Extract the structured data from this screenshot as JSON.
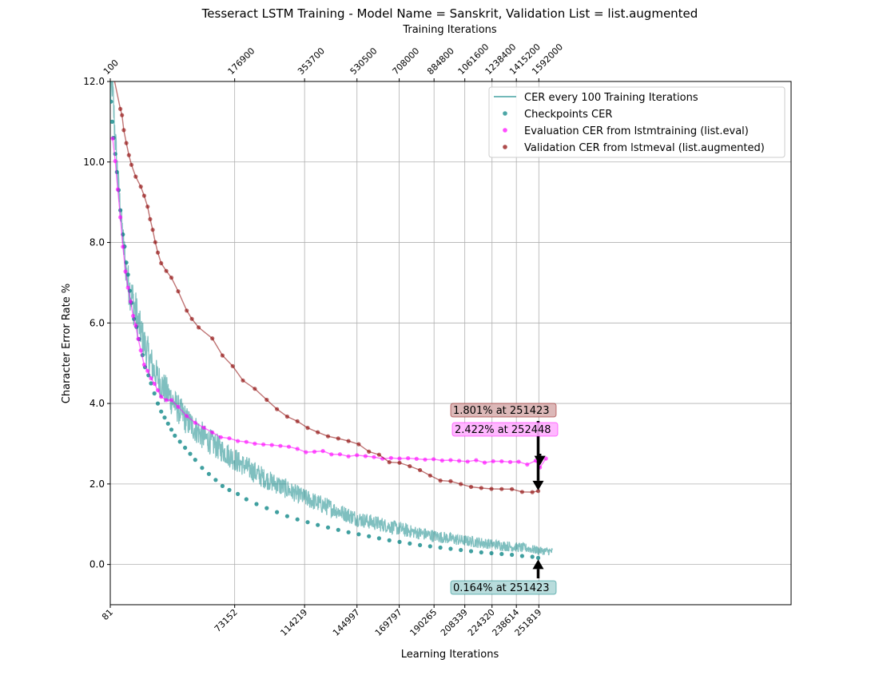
{
  "chart_data": {
    "type": "line",
    "title": "Tesseract LSTM Training - Model Name = Sanskrit, Validation List = list.augmented",
    "xlabel": "Learning Iterations",
    "x2label": "Training Iterations",
    "ylabel": "Character Error Rate %",
    "xlim": [
      81,
      400000
    ],
    "ylim": [
      -1.0,
      12.0
    ],
    "yticks": [
      0.0,
      2.0,
      4.0,
      6.0,
      8.0,
      10.0,
      12.0
    ],
    "ytick_labels": [
      "0.0",
      "2.0",
      "4.0",
      "6.0",
      "8.0",
      "10.0",
      "12.0"
    ],
    "xticks_bottom": [
      81,
      73152,
      114219,
      144997,
      169797,
      190265,
      208339,
      224320,
      238614,
      251819
    ],
    "xticks_top": [
      {
        "label": "100",
        "x": 81
      },
      {
        "label": "176900",
        "x": 73152
      },
      {
        "label": "353700",
        "x": 114219
      },
      {
        "label": "530500",
        "x": 144997
      },
      {
        "label": "708000",
        "x": 169797
      },
      {
        "label": "884800",
        "x": 190265
      },
      {
        "label": "1061600",
        "x": 208339
      },
      {
        "label": "1238400",
        "x": 224320
      },
      {
        "label": "1415200",
        "x": 238614
      },
      {
        "label": "1592000",
        "x": 251819
      }
    ],
    "grid": true,
    "legend": {
      "position": "top-right",
      "entries": [
        {
          "label": "CER every 100 Training Iterations",
          "kind": "line",
          "color": "#008080"
        },
        {
          "label": "Checkpoints CER",
          "kind": "dot",
          "color": "#008080"
        },
        {
          "label": "Evaluation CER from lstmtraining (list.eval)",
          "kind": "dot",
          "color": "#ff00ff"
        },
        {
          "label": "Validation CER from lstmeval (list.augmented)",
          "kind": "dot",
          "color": "#8b0000"
        }
      ]
    },
    "series": [
      {
        "name": "CER every 100 Training Iterations",
        "kind": "line",
        "color": "#008080",
        "points": [
          [
            81,
            11.5
          ],
          [
            1000,
            12.0
          ],
          [
            3000,
            10.5
          ],
          [
            5000,
            9.2
          ],
          [
            8000,
            7.8
          ],
          [
            10000,
            7.0
          ],
          [
            13000,
            6.5
          ],
          [
            16000,
            6.0
          ],
          [
            20000,
            5.4
          ],
          [
            25000,
            4.8
          ],
          [
            30000,
            4.4
          ],
          [
            38000,
            3.9
          ],
          [
            45000,
            3.5
          ],
          [
            55000,
            3.1
          ],
          [
            65000,
            2.8
          ],
          [
            75000,
            2.5
          ],
          [
            90000,
            2.1
          ],
          [
            105000,
            1.8
          ],
          [
            115000,
            1.6
          ],
          [
            130000,
            1.35
          ],
          [
            145000,
            1.1
          ],
          [
            160000,
            0.95
          ],
          [
            175000,
            0.8
          ],
          [
            190000,
            0.68
          ],
          [
            205000,
            0.58
          ],
          [
            220000,
            0.5
          ],
          [
            235000,
            0.42
          ],
          [
            245000,
            0.38
          ],
          [
            252448,
            0.32
          ],
          [
            260000,
            0.3
          ]
        ],
        "noise": [
          0.6,
          1.0,
          0.9,
          0.8,
          0.9,
          1.0,
          1.1,
          0.9,
          0.9,
          0.8,
          0.8,
          0.75,
          0.7,
          0.65,
          0.6,
          0.55,
          0.5,
          0.45,
          0.45,
          0.4,
          0.38,
          0.35,
          0.32,
          0.3,
          0.28,
          0.26,
          0.24,
          0.22,
          0.2,
          0.18
        ]
      },
      {
        "name": "Checkpoints CER",
        "kind": "dot",
        "color": "#008080",
        "points": [
          [
            500,
            11.5
          ],
          [
            1200,
            11.0
          ],
          [
            2000,
            10.6
          ],
          [
            3000,
            10.2
          ],
          [
            4000,
            9.75
          ],
          [
            5000,
            9.3
          ],
          [
            6000,
            8.8
          ],
          [
            7500,
            8.2
          ],
          [
            8500,
            7.9
          ],
          [
            9500,
            7.5
          ],
          [
            10500,
            7.2
          ],
          [
            11500,
            6.8
          ],
          [
            12500,
            6.5
          ],
          [
            14000,
            6.1
          ],
          [
            15500,
            5.9
          ],
          [
            17000,
            5.6
          ],
          [
            19000,
            5.2
          ],
          [
            20500,
            4.9
          ],
          [
            22500,
            4.7
          ],
          [
            24000,
            4.5
          ],
          [
            26000,
            4.25
          ],
          [
            28000,
            4.0
          ],
          [
            30000,
            3.8
          ],
          [
            32000,
            3.65
          ],
          [
            34000,
            3.5
          ],
          [
            36000,
            3.35
          ],
          [
            38000,
            3.2
          ],
          [
            41000,
            3.05
          ],
          [
            44000,
            2.9
          ],
          [
            47000,
            2.75
          ],
          [
            50000,
            2.6
          ],
          [
            54000,
            2.4
          ],
          [
            58000,
            2.25
          ],
          [
            62000,
            2.1
          ],
          [
            66000,
            1.95
          ],
          [
            70000,
            1.85
          ],
          [
            75000,
            1.75
          ],
          [
            80000,
            1.62
          ],
          [
            86000,
            1.5
          ],
          [
            92000,
            1.4
          ],
          [
            98000,
            1.3
          ],
          [
            104000,
            1.2
          ],
          [
            110000,
            1.12
          ],
          [
            116000,
            1.05
          ],
          [
            122000,
            0.98
          ],
          [
            128000,
            0.92
          ],
          [
            134000,
            0.86
          ],
          [
            140000,
            0.8
          ],
          [
            146000,
            0.75
          ],
          [
            152000,
            0.7
          ],
          [
            158000,
            0.65
          ],
          [
            164000,
            0.6
          ],
          [
            170000,
            0.56
          ],
          [
            176000,
            0.52
          ],
          [
            182000,
            0.48
          ],
          [
            188000,
            0.45
          ],
          [
            194000,
            0.42
          ],
          [
            200000,
            0.39
          ],
          [
            206000,
            0.36
          ],
          [
            212000,
            0.33
          ],
          [
            218000,
            0.3
          ],
          [
            224000,
            0.28
          ],
          [
            230000,
            0.26
          ],
          [
            236000,
            0.24
          ],
          [
            242000,
            0.21
          ],
          [
            248000,
            0.19
          ],
          [
            251423,
            0.164
          ]
        ]
      },
      {
        "name": "Evaluation CER from lstmtraining (list.eval)",
        "kind": "dot-line",
        "color": "#ff00ff",
        "points": [
          [
            1500,
            10.6
          ],
          [
            3000,
            10.0
          ],
          [
            4500,
            9.3
          ],
          [
            6000,
            8.6
          ],
          [
            7500,
            7.9
          ],
          [
            9000,
            7.3
          ],
          [
            10500,
            6.9
          ],
          [
            12000,
            6.5
          ],
          [
            13500,
            6.2
          ],
          [
            15000,
            5.9
          ],
          [
            16500,
            5.6
          ],
          [
            18000,
            5.3
          ],
          [
            20000,
            5.0
          ],
          [
            22000,
            4.8
          ],
          [
            24000,
            4.6
          ],
          [
            26000,
            4.5
          ],
          [
            28000,
            4.3
          ],
          [
            30000,
            4.2
          ],
          [
            33000,
            4.1
          ],
          [
            36000,
            4.05
          ],
          [
            40000,
            3.9
          ],
          [
            45000,
            3.7
          ],
          [
            50000,
            3.5
          ],
          [
            55000,
            3.4
          ],
          [
            60000,
            3.3
          ],
          [
            65000,
            3.2
          ],
          [
            70000,
            3.15
          ],
          [
            75000,
            3.1
          ],
          [
            80000,
            3.05
          ],
          [
            85000,
            3.02
          ],
          [
            90000,
            3.0
          ],
          [
            95000,
            2.95
          ],
          [
            100000,
            2.92
          ],
          [
            105000,
            2.9
          ],
          [
            110000,
            2.85
          ],
          [
            115000,
            2.82
          ],
          [
            120000,
            2.8
          ],
          [
            125000,
            2.78
          ],
          [
            130000,
            2.75
          ],
          [
            135000,
            2.74
          ],
          [
            140000,
            2.72
          ],
          [
            145000,
            2.7
          ],
          [
            150000,
            2.68
          ],
          [
            155000,
            2.66
          ],
          [
            160000,
            2.64
          ],
          [
            165000,
            2.62
          ],
          [
            170000,
            2.6
          ],
          [
            175000,
            2.6
          ],
          [
            180000,
            2.6
          ],
          [
            185000,
            2.59
          ],
          [
            190000,
            2.6
          ],
          [
            195000,
            2.58
          ],
          [
            200000,
            2.6
          ],
          [
            205000,
            2.57
          ],
          [
            210000,
            2.56
          ],
          [
            215000,
            2.58
          ],
          [
            220000,
            2.55
          ],
          [
            225000,
            2.56
          ],
          [
            230000,
            2.55
          ],
          [
            235000,
            2.54
          ],
          [
            240000,
            2.56
          ],
          [
            245000,
            2.5
          ],
          [
            250000,
            2.55
          ],
          [
            252448,
            2.422
          ],
          [
            256000,
            2.6
          ]
        ],
        "noise": 0.08
      },
      {
        "name": "Validation CER from lstmeval (list.augmented)",
        "kind": "dot-line",
        "color": "#8b0000",
        "points": [
          [
            81,
            12.5
          ],
          [
            6000,
            11.3
          ],
          [
            7000,
            11.15
          ],
          [
            8000,
            10.8
          ],
          [
            9500,
            10.5
          ],
          [
            11000,
            10.2
          ],
          [
            12500,
            9.95
          ],
          [
            15000,
            9.65
          ],
          [
            18000,
            9.4
          ],
          [
            20000,
            9.15
          ],
          [
            22000,
            8.9
          ],
          [
            23500,
            8.6
          ],
          [
            25000,
            8.3
          ],
          [
            26500,
            8.0
          ],
          [
            28000,
            7.75
          ],
          [
            30000,
            7.5
          ],
          [
            33000,
            7.3
          ],
          [
            36000,
            7.1
          ],
          [
            40000,
            6.8
          ],
          [
            45000,
            6.3
          ],
          [
            48000,
            6.1
          ],
          [
            52000,
            5.9
          ],
          [
            60000,
            5.6
          ],
          [
            66000,
            5.2
          ],
          [
            72000,
            4.9
          ],
          [
            78000,
            4.6
          ],
          [
            85000,
            4.35
          ],
          [
            92000,
            4.1
          ],
          [
            98000,
            3.85
          ],
          [
            104000,
            3.7
          ],
          [
            110000,
            3.55
          ],
          [
            116000,
            3.4
          ],
          [
            122000,
            3.3
          ],
          [
            128000,
            3.2
          ],
          [
            134000,
            3.15
          ],
          [
            140000,
            3.05
          ],
          [
            146000,
            3.0
          ],
          [
            152000,
            2.8
          ],
          [
            158000,
            2.7
          ],
          [
            164000,
            2.55
          ],
          [
            170000,
            2.5
          ],
          [
            176000,
            2.45
          ],
          [
            182000,
            2.35
          ],
          [
            188000,
            2.2
          ],
          [
            194000,
            2.1
          ],
          [
            200000,
            2.05
          ],
          [
            206000,
            2.0
          ],
          [
            212000,
            1.95
          ],
          [
            218000,
            1.92
          ],
          [
            224000,
            1.9
          ],
          [
            230000,
            1.88
          ],
          [
            236000,
            1.85
          ],
          [
            242000,
            1.82
          ],
          [
            248000,
            1.8
          ],
          [
            251423,
            1.801
          ]
        ],
        "noise": 0.06
      }
    ],
    "annotations": [
      {
        "text": "1.801% at 251423",
        "x": 251423,
        "y": 1.801,
        "color": "#8b0000",
        "bg": "#d8b0b0"
      },
      {
        "text": "2.422% at 252448",
        "x": 252448,
        "y": 2.422,
        "color": "#ff00ff",
        "bg": "#ffb0ff"
      },
      {
        "text": "0.164% at 251423",
        "x": 251423,
        "y": 0.164,
        "color": "#008080",
        "bg": "#b0d8d8"
      }
    ]
  }
}
